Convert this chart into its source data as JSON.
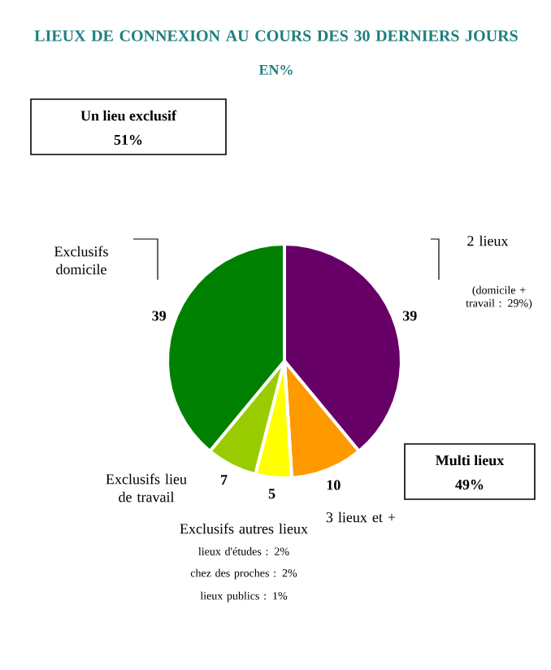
{
  "chart_data": {
    "type": "pie",
    "title": "LIEUX DE CONNEXION AU COURS DES 30 DERNIERS JOURS",
    "subtitle": "EN%",
    "categories": [
      "2 lieux",
      "3 lieux et +",
      "Exclusifs autres lieux",
      "Exclusifs lieu de travail",
      "Exclusifs domicile"
    ],
    "values": [
      39,
      10,
      5,
      7,
      39
    ],
    "colors": [
      "#660066",
      "#ff9900",
      "#ffff00",
      "#99cc00",
      "#008000"
    ],
    "data_labels": true,
    "annotations": [
      "Un lieu exclusif",
      "51%",
      "Multi lieux",
      "49%",
      "(domicile + travail : 29%)",
      "lieux d'études : 2%",
      "chez des proches : 2%",
      "lieux publics : 1%"
    ]
  }
}
